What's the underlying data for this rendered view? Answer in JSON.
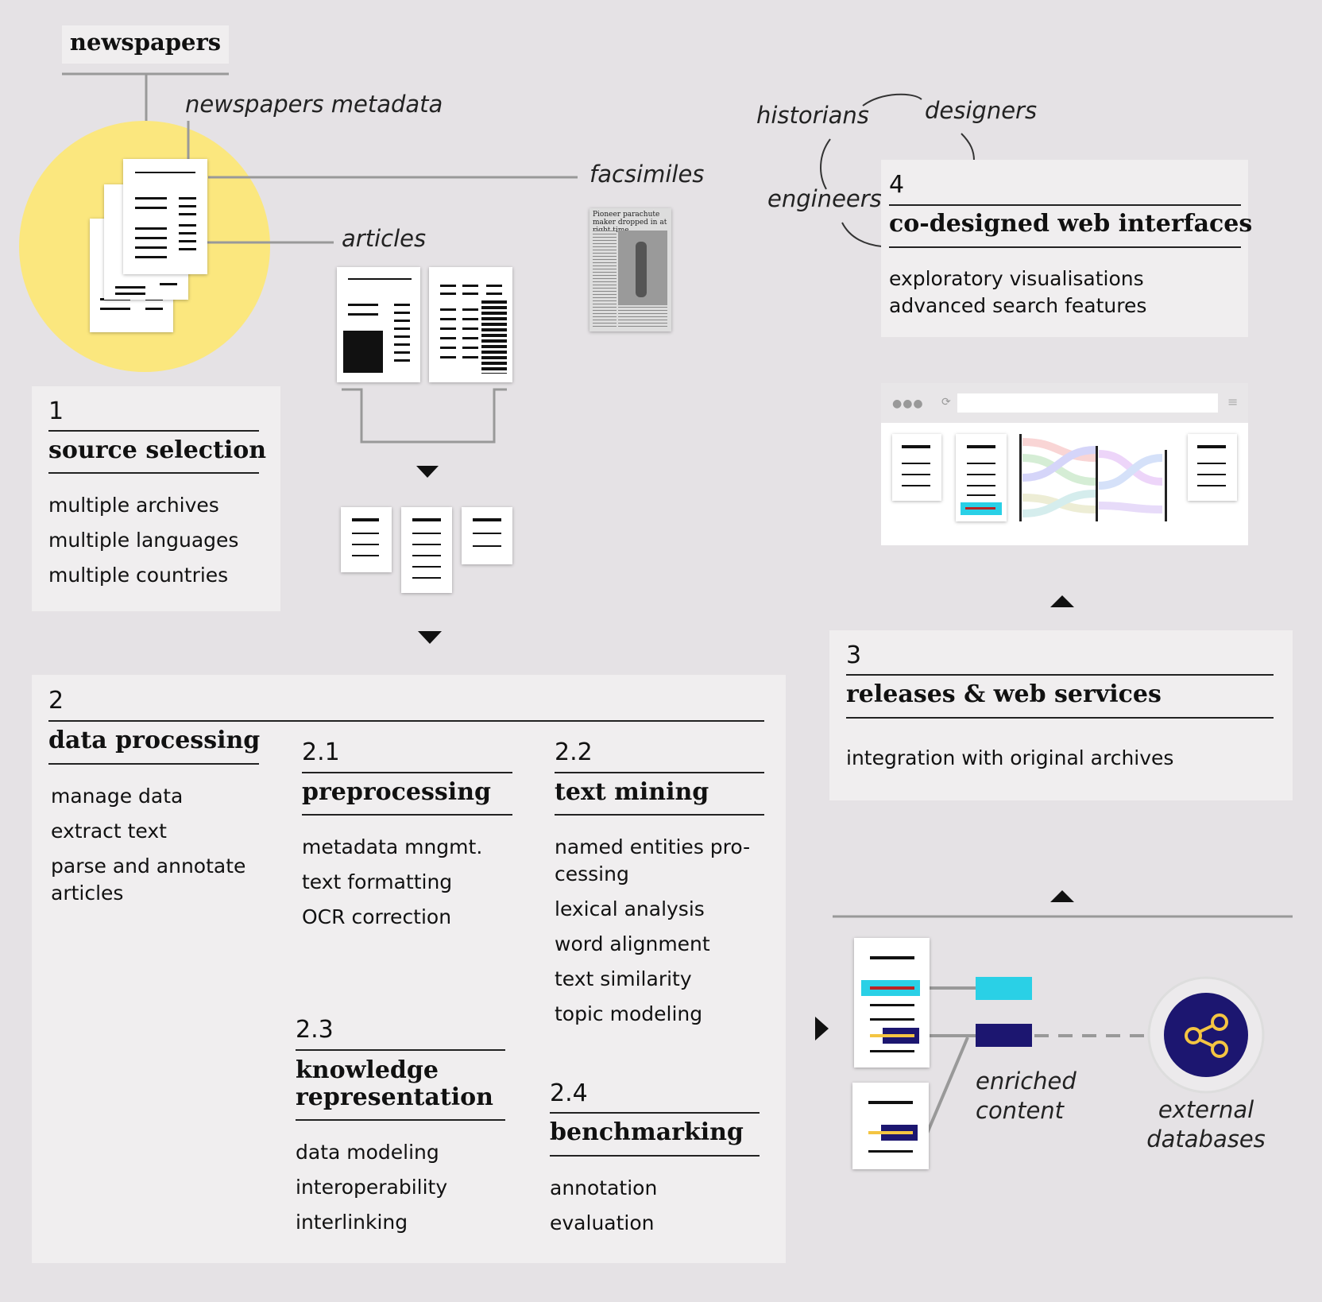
{
  "top_label": "newspapers",
  "labels": {
    "metadata": "newspapers metadata",
    "facsimiles": "facsimiles",
    "articles": "articles",
    "historians": "historians",
    "designers": "designers",
    "engineers": "engineers",
    "enriched": "enriched content",
    "external": "external databases",
    "facsimile_headline": "Pioneer parachute maker dropped in at right time"
  },
  "s1": {
    "num": "1",
    "title": "source selection",
    "items": [
      "multiple archives",
      "multiple languages",
      "multiple countries"
    ]
  },
  "s2": {
    "num": "2",
    "title": "data processing",
    "items": [
      "manage data",
      "extract text",
      "parse and annotate articles"
    ]
  },
  "s21": {
    "num": "2.1",
    "title": "preprocessing",
    "items": [
      "metadata mngmt.",
      "text formatting",
      "OCR correction"
    ]
  },
  "s22": {
    "num": "2.2",
    "title": "text mining",
    "items": [
      "named entities pro-cessing",
      "lexical analysis",
      "word alignment",
      "text similarity",
      "topic modeling"
    ]
  },
  "s23": {
    "num": "2.3",
    "title": "knowledge representation",
    "items": [
      "data modeling",
      "interoperability",
      "interlinking"
    ]
  },
  "s24": {
    "num": "2.4",
    "title": "benchmarking",
    "items": [
      "annotation",
      "evaluation"
    ]
  },
  "s3": {
    "num": "3",
    "title": "releases & web services",
    "items": [
      "integration with original archives"
    ]
  },
  "s4": {
    "num": "4",
    "title": "co-designed web interfaces",
    "items": [
      "exploratory visualisations",
      "advanced search features"
    ]
  },
  "colors": {
    "yellow": "#fbe77e",
    "panel": "#f0eeef",
    "background": "#e5e2e5",
    "cyan": "#2ad0e6",
    "navy": "#1c1670",
    "red": "#b22",
    "gold": "#f4c542"
  }
}
